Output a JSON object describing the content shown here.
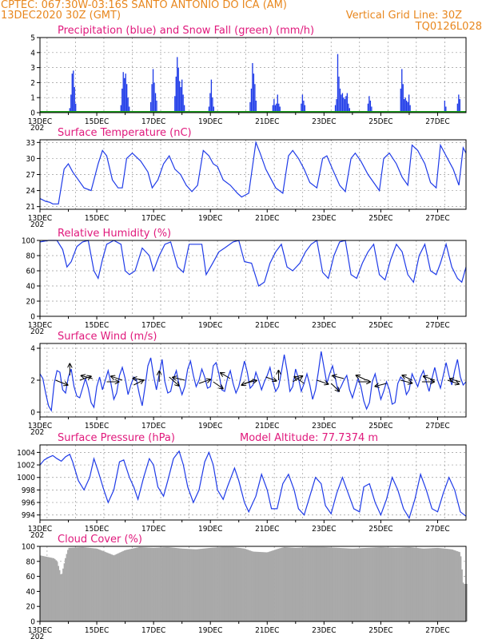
{
  "header": {
    "line1_left": "CPTEC:   067:30W-03:16S   SANTO ANTONIO DO ICA (AM)",
    "line2_left": "13DEC2020 30Z (GMT)",
    "line2_right": "Vertical Grid Line: 30Z",
    "line3_right": "TQ0126L028",
    "color": "#e8871e"
  },
  "x_axis": {
    "labels": [
      "13DEC",
      "15DEC",
      "17DEC",
      "19DEC",
      "21DEC",
      "23DEC",
      "25DEC",
      "27DEC"
    ],
    "clipped_year": "202"
  },
  "colors": {
    "line": "#1f3be8",
    "snow": "#1a9e1a",
    "cloud": "#a9a9a9",
    "title": "#e0197c",
    "grid": "#9a9a9a"
  },
  "chart_data": [
    {
      "type": "bar",
      "title": "Precipitation (blue) and Snow Fall (green) (mm/h)",
      "yticks": [
        "0",
        "1",
        "2",
        "3",
        "4",
        "5"
      ],
      "ylim": [
        0,
        5
      ],
      "xlim_days": [
        0,
        15
      ],
      "snow_line": 0,
      "events": [
        {
          "day": 1.05,
          "values": [
            0.3,
            1.2,
            2.6,
            2.8,
            1.7,
            0.6
          ]
        },
        {
          "day": 2.85,
          "values": [
            0.5,
            1.6,
            2.7,
            2.3,
            2.6,
            1.9,
            1.0,
            0.4
          ]
        },
        {
          "day": 3.9,
          "values": [
            0.7,
            1.9,
            2.9,
            2.0,
            1.3,
            0.8
          ]
        },
        {
          "day": 4.75,
          "values": [
            1.1,
            2.4,
            3.7,
            3.0,
            2.1,
            1.7,
            2.2,
            1.2,
            0.5
          ]
        },
        {
          "day": 5.95,
          "values": [
            0.4,
            1.3,
            2.2,
            1.0,
            0.4
          ]
        },
        {
          "day": 7.4,
          "values": [
            0.7,
            1.6,
            3.3,
            2.6,
            1.9,
            0.8
          ]
        },
        {
          "day": 8.2,
          "values": [
            0.5,
            0.9,
            0.5,
            0.6,
            1.2,
            0.6,
            0.4
          ]
        },
        {
          "day": 9.2,
          "values": [
            0.6,
            1.2,
            0.8,
            0.5
          ]
        },
        {
          "day": 10.4,
          "values": [
            0.5,
            0.9,
            3.9,
            2.4,
            1.6,
            1.2,
            1.3,
            1.0,
            0.9,
            1.1,
            1.3,
            0.6,
            0.3
          ]
        },
        {
          "day": 11.55,
          "values": [
            0.6,
            1.1,
            0.8,
            0.4
          ]
        },
        {
          "day": 12.7,
          "values": [
            1.6,
            2.9,
            1.9,
            0.9,
            1.0,
            0.8,
            0.7,
            1.2,
            0.5
          ]
        },
        {
          "day": 14.25,
          "values": [
            0.8,
            0.4
          ]
        },
        {
          "day": 14.7,
          "values": [
            0.6,
            1.2,
            0.9
          ]
        }
      ]
    },
    {
      "type": "line",
      "title": "Surface Temperature (nC)",
      "yticks": [
        "21",
        "24",
        "27",
        "30",
        "33"
      ],
      "ylim": [
        20.5,
        33.5
      ],
      "xlim_days": [
        0,
        15
      ],
      "series": [
        {
          "x": [
            0,
            0.2,
            0.35,
            0.45,
            0.65,
            0.85,
            1.0,
            1.15,
            1.35,
            1.55,
            1.8,
            2.05,
            2.2,
            2.35,
            2.55,
            2.75,
            2.9,
            3.05,
            3.25,
            3.55,
            3.8,
            3.95,
            4.15,
            4.35,
            4.55,
            4.75,
            4.95,
            5.15,
            5.35,
            5.55,
            5.75,
            5.95,
            6.1,
            6.25,
            6.45,
            6.7,
            6.95,
            7.1,
            7.35,
            7.6,
            7.75,
            7.95,
            8.1,
            8.3,
            8.55,
            8.75,
            8.9,
            9.1,
            9.3,
            9.5,
            9.75,
            9.95,
            10.1,
            10.3,
            10.55,
            10.75,
            10.95,
            11.1,
            11.3,
            11.55,
            11.75,
            11.95,
            12.1,
            12.3,
            12.55,
            12.75,
            12.95,
            13.1,
            13.3,
            13.55,
            13.75,
            13.95,
            14.1,
            14.3,
            14.55,
            14.75,
            14.9,
            15.0
          ],
          "y": [
            22.5,
            22.0,
            21.8,
            21.5,
            21.5,
            28.0,
            29.0,
            27.5,
            26.0,
            24.5,
            24.0,
            29.0,
            31.5,
            30.5,
            26.0,
            24.5,
            24.5,
            30.0,
            31.0,
            29.5,
            27.5,
            24.5,
            26.0,
            29.0,
            30.5,
            28.0,
            27.0,
            25.0,
            23.8,
            25.0,
            31.5,
            30.5,
            29.0,
            28.5,
            26.0,
            25.0,
            23.5,
            22.8,
            23.5,
            33.0,
            31.0,
            28.0,
            26.5,
            24.5,
            23.5,
            30.5,
            31.5,
            30.0,
            28.0,
            25.5,
            24.5,
            30.0,
            30.5,
            28.0,
            25.0,
            23.8,
            30.0,
            31.0,
            29.5,
            27.0,
            25.5,
            24.0,
            30.0,
            31.0,
            29.0,
            26.5,
            25.0,
            32.5,
            31.5,
            29.0,
            25.5,
            24.5,
            32.5,
            30.5,
            28.0,
            25.0,
            32.0,
            31.0
          ]
        }
      ]
    },
    {
      "type": "line",
      "title": "Relative Humidity (%)",
      "yticks": [
        "0",
        "20",
        "40",
        "60",
        "80",
        "100"
      ],
      "ylim": [
        0,
        100
      ],
      "xlim_days": [
        0,
        15
      ],
      "series": [
        {
          "x": [
            0,
            0.3,
            0.6,
            0.8,
            0.95,
            1.1,
            1.3,
            1.5,
            1.7,
            1.9,
            2.05,
            2.2,
            2.35,
            2.6,
            2.85,
            3.0,
            3.15,
            3.35,
            3.6,
            3.85,
            4.0,
            4.2,
            4.4,
            4.6,
            4.85,
            5.05,
            5.25,
            5.5,
            5.7,
            5.85,
            6.05,
            6.3,
            6.5,
            6.8,
            7.0,
            7.2,
            7.45,
            7.7,
            7.9,
            8.1,
            8.3,
            8.5,
            8.7,
            8.9,
            9.15,
            9.35,
            9.55,
            9.75,
            9.95,
            10.15,
            10.35,
            10.55,
            10.75,
            10.95,
            11.15,
            11.35,
            11.55,
            11.75,
            11.95,
            12.15,
            12.35,
            12.55,
            12.75,
            12.95,
            13.15,
            13.35,
            13.55,
            13.75,
            13.95,
            14.1,
            14.3,
            14.5,
            14.7,
            14.85,
            15.0
          ],
          "y": [
            98,
            100,
            100,
            88,
            65,
            72,
            92,
            98,
            100,
            60,
            50,
            75,
            95,
            100,
            95,
            60,
            55,
            60,
            90,
            80,
            60,
            80,
            95,
            98,
            65,
            58,
            95,
            95,
            95,
            55,
            68,
            85,
            90,
            98,
            100,
            72,
            70,
            40,
            45,
            70,
            85,
            95,
            65,
            60,
            70,
            85,
            95,
            100,
            58,
            50,
            80,
            98,
            100,
            55,
            50,
            70,
            85,
            95,
            55,
            48,
            75,
            95,
            85,
            55,
            45,
            80,
            95,
            60,
            55,
            70,
            95,
            65,
            50,
            45,
            65
          ]
        }
      ]
    },
    {
      "type": "line",
      "title": "Surface Wind (m/s)",
      "yticks": [
        "0",
        "2",
        "4"
      ],
      "ylim": [
        -0.3,
        4.3
      ],
      "xlim_days": [
        0,
        15
      ],
      "series": [
        {
          "x": [
            0,
            0.1,
            0.2,
            0.3,
            0.4,
            0.5,
            0.6,
            0.7,
            0.8,
            0.9,
            1.0,
            1.1,
            1.2,
            1.3,
            1.4,
            1.5,
            1.6,
            1.7,
            1.8,
            1.9,
            2.0,
            2.1,
            2.2,
            2.3,
            2.4,
            2.5,
            2.6,
            2.7,
            2.8,
            2.9,
            3.0,
            3.1,
            3.2,
            3.3,
            3.4,
            3.5,
            3.6,
            3.7,
            3.8,
            3.9,
            4.0,
            4.1,
            4.2,
            4.3,
            4.4,
            4.5,
            4.6,
            4.7,
            4.8,
            4.9,
            5.0,
            5.1,
            5.2,
            5.3,
            5.4,
            5.5,
            5.6,
            5.7,
            5.8,
            5.9,
            6.0,
            6.1,
            6.2,
            6.3,
            6.4,
            6.5,
            6.6,
            6.7,
            6.8,
            6.9,
            7.0,
            7.1,
            7.2,
            7.3,
            7.4,
            7.5,
            7.6,
            7.7,
            7.8,
            7.9,
            8.0,
            8.1,
            8.2,
            8.3,
            8.4,
            8.5,
            8.6,
            8.7,
            8.8,
            8.9,
            9.0,
            9.1,
            9.2,
            9.3,
            9.4,
            9.5,
            9.6,
            9.7,
            9.8,
            9.9,
            10.0,
            10.1,
            10.2,
            10.3,
            10.4,
            10.5,
            10.6,
            10.7,
            10.8,
            10.9,
            11.0,
            11.1,
            11.2,
            11.3,
            11.4,
            11.5,
            11.6,
            11.7,
            11.8,
            11.9,
            12.0,
            12.1,
            12.2,
            12.3,
            12.4,
            12.5,
            12.6,
            12.7,
            12.8,
            12.9,
            13.0,
            13.1,
            13.2,
            13.3,
            13.4,
            13.5,
            13.6,
            13.7,
            13.8,
            13.9,
            14.0,
            14.1,
            14.2,
            14.3,
            14.4,
            14.5,
            14.6,
            14.7,
            14.8,
            14.9,
            15.0
          ],
          "y": [
            2.4,
            2.1,
            1.2,
            0.4,
            0.1,
            1.8,
            2.6,
            2.5,
            1.4,
            1.2,
            2.2,
            2.7,
            1.6,
            1.0,
            0.9,
            1.5,
            2.1,
            1.5,
            0.6,
            0.3,
            1.6,
            2.2,
            1.4,
            2.0,
            2.6,
            1.8,
            0.8,
            1.2,
            2.3,
            2.8,
            2.1,
            1.1,
            1.7,
            2.2,
            2.0,
            1.1,
            0.4,
            1.6,
            2.9,
            3.4,
            2.3,
            1.4,
            2.4,
            3.3,
            1.9,
            1.2,
            1.3,
            2.1,
            2.6,
            1.7,
            1.1,
            1.6,
            2.7,
            3.2,
            2.3,
            1.6,
            2.0,
            2.7,
            2.2,
            1.5,
            1.6,
            2.9,
            3.1,
            2.4,
            1.4,
            1.3,
            2.1,
            2.6,
            1.8,
            1.2,
            1.6,
            2.4,
            3.2,
            2.5,
            1.5,
            1.7,
            2.5,
            2.0,
            1.4,
            1.9,
            2.3,
            2.8,
            1.9,
            1.3,
            1.6,
            2.5,
            3.6,
            2.6,
            1.3,
            1.6,
            2.7,
            2.1,
            1.3,
            1.8,
            2.4,
            1.7,
            0.8,
            1.4,
            2.5,
            3.8,
            2.8,
            1.8,
            2.4,
            2.9,
            2.1,
            1.3,
            1.6,
            2.0,
            2.3,
            1.4,
            0.9,
            1.5,
            2.1,
            1.6,
            0.7,
            0.2,
            0.6,
            1.9,
            2.4,
            1.6,
            0.8,
            1.3,
            1.9,
            1.4,
            0.5,
            0.6,
            1.8,
            2.2,
            2.0,
            1.1,
            1.4,
            2.4,
            2.0,
            1.6,
            2.2,
            2.6,
            1.9,
            1.3,
            2.1,
            2.8,
            2.0,
            1.5,
            2.3,
            3.1,
            2.3,
            1.7,
            2.6,
            3.3,
            2.2,
            1.7,
            1.9
          ]
        }
      ]
    },
    {
      "type": "line",
      "title": "Surface Pressure (hPa)",
      "annotation": "Model Altitude: 77.7374 m",
      "yticks": [
        "994",
        "996",
        "998",
        "1000",
        "1002",
        "1004"
      ],
      "ylim": [
        993.2,
        1005.2
      ],
      "xlim_days": [
        0,
        15
      ],
      "series": [
        {
          "x": [
            0,
            0.15,
            0.3,
            0.45,
            0.6,
            0.75,
            0.9,
            1.05,
            1.15,
            1.35,
            1.55,
            1.75,
            1.9,
            2.05,
            2.25,
            2.4,
            2.6,
            2.8,
            2.95,
            3.15,
            3.3,
            3.45,
            3.65,
            3.85,
            4.0,
            4.15,
            4.35,
            4.5,
            4.7,
            4.9,
            5.05,
            5.2,
            5.4,
            5.6,
            5.8,
            5.95,
            6.1,
            6.25,
            6.45,
            6.6,
            6.85,
            7.0,
            7.2,
            7.35,
            7.6,
            7.8,
            8.0,
            8.15,
            8.35,
            8.55,
            8.75,
            8.95,
            9.1,
            9.3,
            9.5,
            9.7,
            9.9,
            10.05,
            10.25,
            10.45,
            10.65,
            10.85,
            11.05,
            11.25,
            11.4,
            11.6,
            11.8,
            12.0,
            12.2,
            12.4,
            12.6,
            12.8,
            13.0,
            13.2,
            13.4,
            13.6,
            13.8,
            14.0,
            14.2,
            14.4,
            14.6,
            14.8,
            15.0
          ],
          "y": [
            1002.0,
            1002.8,
            1003.2,
            1003.5,
            1003.0,
            1002.6,
            1003.3,
            1003.7,
            1002.5,
            999.5,
            998.0,
            1000.0,
            1003.0,
            1001.0,
            998.0,
            996.0,
            998.0,
            1002.5,
            1002.8,
            1000.0,
            998.5,
            996.5,
            1000.0,
            1003.0,
            1002.0,
            998.5,
            997.0,
            999.5,
            1003.0,
            1004.2,
            1002.0,
            998.5,
            996.0,
            998.0,
            1002.5,
            1004.0,
            1002.0,
            998.0,
            996.5,
            998.5,
            1001.5,
            999.5,
            996.0,
            994.5,
            997.0,
            1000.5,
            998.0,
            995.0,
            995.0,
            999.0,
            1000.5,
            998.0,
            995.0,
            994.0,
            997.0,
            1000.0,
            999.0,
            995.5,
            994.2,
            997.5,
            1000.0,
            997.5,
            995.0,
            994.5,
            998.5,
            999.0,
            996.0,
            994.0,
            996.5,
            1000.0,
            998.0,
            995.0,
            993.5,
            996.5,
            1000.5,
            998.0,
            995.0,
            994.5,
            997.5,
            1000.0,
            998.0,
            994.5,
            993.8
          ]
        }
      ]
    },
    {
      "type": "bar",
      "title": "Cloud Cover (%)",
      "yticks": [
        "0",
        "20",
        "40",
        "60",
        "80",
        "100"
      ],
      "ylim": [
        0,
        100
      ],
      "xlim_days": [
        0,
        15
      ],
      "profile_x": [
        0,
        0.5,
        0.6,
        0.75,
        0.9,
        1.0,
        1.5,
        2.0,
        2.6,
        3.0,
        3.5,
        4.0,
        4.5,
        5.0,
        5.5,
        6.0,
        6.4,
        6.8,
        7.0,
        7.2,
        7.5,
        8.0,
        8.4,
        8.6,
        9.0,
        9.5,
        10.0,
        10.5,
        11.0,
        11.5,
        12.0,
        12.5,
        13.0,
        13.5,
        14.0,
        14.5,
        14.8,
        14.9,
        15.0
      ],
      "profile_y": [
        88,
        84,
        80,
        60,
        85,
        98,
        99,
        97,
        88,
        95,
        99,
        98,
        99,
        97,
        96,
        98,
        99,
        99,
        98,
        97,
        93,
        92,
        97,
        99,
        98,
        99,
        99,
        98,
        97,
        98,
        99,
        98,
        99,
        97,
        98,
        96,
        92,
        50,
        50
      ]
    }
  ]
}
